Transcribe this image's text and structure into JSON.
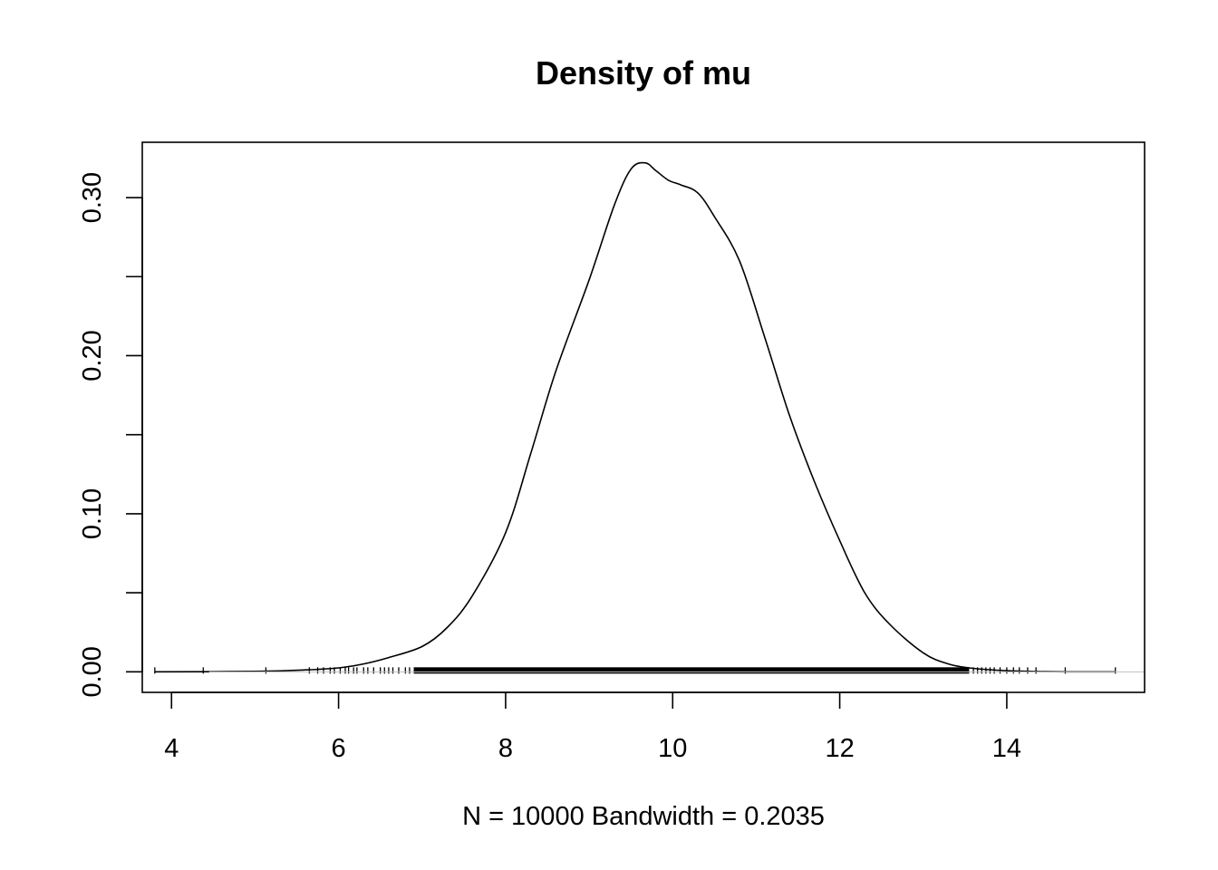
{
  "chart_data": {
    "type": "line",
    "title": "Density of mu",
    "xlabel": "N = 10000   Bandwidth = 0.2035",
    "ylabel": "",
    "xlim": [
      3.65,
      15.65
    ],
    "ylim": [
      -0.013,
      0.335
    ],
    "x_ticks": [
      4,
      6,
      8,
      10,
      12,
      14
    ],
    "x_tick_labels": [
      "4",
      "6",
      "8",
      "10",
      "12",
      "14"
    ],
    "y_ticks": [
      0.0,
      0.05,
      0.1,
      0.15,
      0.2,
      0.25,
      0.3
    ],
    "y_tick_labels": [
      "0.00",
      "",
      "0.10",
      "",
      "0.20",
      "",
      "0.30"
    ],
    "grid": false,
    "series": [
      {
        "name": "density",
        "x": [
          3.8,
          5.0,
          5.6,
          6.0,
          6.3,
          6.6,
          7.0,
          7.3,
          7.6,
          8.0,
          8.3,
          8.6,
          9.0,
          9.3,
          9.5,
          9.67,
          9.8,
          9.95,
          10.1,
          10.3,
          10.5,
          10.8,
          11.1,
          11.4,
          11.7,
          12.0,
          12.3,
          12.6,
          13.0,
          13.3,
          13.6,
          14.0,
          14.4,
          14.7,
          15.3
        ],
        "y": [
          0.0,
          0.0003,
          0.0012,
          0.0025,
          0.005,
          0.009,
          0.016,
          0.028,
          0.048,
          0.088,
          0.138,
          0.19,
          0.248,
          0.295,
          0.318,
          0.322,
          0.317,
          0.311,
          0.308,
          0.303,
          0.288,
          0.26,
          0.212,
          0.162,
          0.12,
          0.083,
          0.05,
          0.03,
          0.012,
          0.005,
          0.0022,
          0.0007,
          0.0002,
          0.0,
          0.0
        ]
      }
    ],
    "rug": {
      "dense_range": [
        6.9,
        13.55
      ],
      "sparse_points": [
        3.8,
        4.38,
        5.13,
        5.65,
        5.75,
        5.82,
        5.9,
        5.95,
        6.02,
        6.08,
        6.12,
        6.18,
        6.22,
        6.3,
        6.35,
        6.42,
        6.5,
        6.55,
        6.6,
        6.65,
        6.72,
        6.8,
        6.85,
        13.6,
        13.65,
        13.7,
        13.75,
        13.8,
        13.85,
        13.92,
        14.0,
        14.08,
        14.15,
        14.25,
        14.35,
        14.7,
        15.3
      ]
    }
  }
}
